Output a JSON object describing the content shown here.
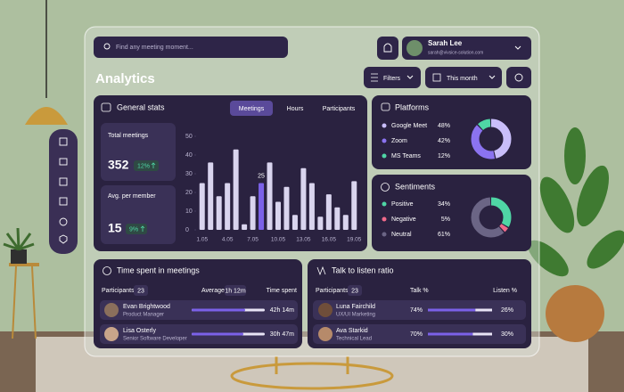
{
  "search_placeholder": "Find any meeting moment...",
  "user": {
    "name": "Sarah Lee",
    "email": "sarah@vivsice-solution.com"
  },
  "page_title": "Analytics",
  "filters": "Filters",
  "period": "This month",
  "general_stats": {
    "title": "General stats",
    "tabs": [
      "Meetings",
      "Hours",
      "Participants"
    ],
    "total_meetings": {
      "label": "Total meetings",
      "value": "352",
      "change": "12%"
    },
    "avg_per_member": {
      "label": "Avg. per member",
      "value": "15",
      "change": "9%"
    }
  },
  "chart_data": [
    {
      "type": "bar",
      "categories": [
        "1.05",
        null,
        null,
        "4.05",
        null,
        null,
        "7.05",
        null,
        null,
        "10.05",
        null,
        null,
        "13.05",
        null,
        null,
        "16.05",
        null,
        null,
        "19.05"
      ],
      "values": [
        25,
        36,
        18,
        25,
        43,
        3,
        18,
        25,
        36,
        15,
        23,
        8,
        33,
        25,
        7,
        19,
        12,
        8,
        26
      ],
      "color": "#d9d4ee",
      "highlight": 7,
      "highlight_color": "#7b61e8",
      "ylim": [
        0,
        50
      ],
      "yticks": [
        0,
        10,
        20,
        30,
        40,
        50
      ]
    },
    {
      "type": "pie",
      "title": "Platforms",
      "donut": true,
      "categories": [
        "Google Meet",
        "Zoom",
        "MS Teams"
      ],
      "values": [
        48,
        42,
        12
      ],
      "value_labels": [
        "48%",
        "42%",
        "12%"
      ],
      "colors": [
        "#c9befa",
        "#8b73f0",
        "#4fd6a5"
      ]
    },
    {
      "type": "pie",
      "title": "Sentiments",
      "donut": true,
      "categories": [
        "Positive",
        "Negative",
        "Neutral"
      ],
      "values": [
        34,
        5,
        61
      ],
      "value_labels": [
        "34%",
        "5%",
        "61%"
      ],
      "colors": [
        "#4fd6a5",
        "#f06a8a",
        "#6b6585"
      ]
    }
  ],
  "time_spent": {
    "title": "Time spent in meetings",
    "participants_label": "Participants",
    "participants_count": "23",
    "average_label": "Average",
    "average": "1h 12m",
    "time_label": "Time spent",
    "rows": [
      {
        "name": "Evan Brightwood",
        "role": "Product Manager",
        "time": "42h 14m"
      },
      {
        "name": "Lisa Osterly",
        "role": "Senior Software Developer",
        "time": "30h 47m"
      }
    ]
  },
  "talk_ratio": {
    "title": "Talk to listen ratio",
    "participants_label": "Participants",
    "participants_count": "23",
    "talk_label": "Talk %",
    "listen_label": "Listen %",
    "rows": [
      {
        "name": "Luna Fairchild",
        "role": "UX/UI Marketing",
        "talk": {
          "value": 74,
          "label": "74%"
        },
        "listen": {
          "value": 26,
          "label": "26%"
        }
      },
      {
        "name": "Ava Starkid",
        "role": "Technical Lead",
        "talk": {
          "value": 70,
          "label": "70%"
        },
        "listen": {
          "value": 30,
          "label": "30%"
        }
      }
    ]
  }
}
